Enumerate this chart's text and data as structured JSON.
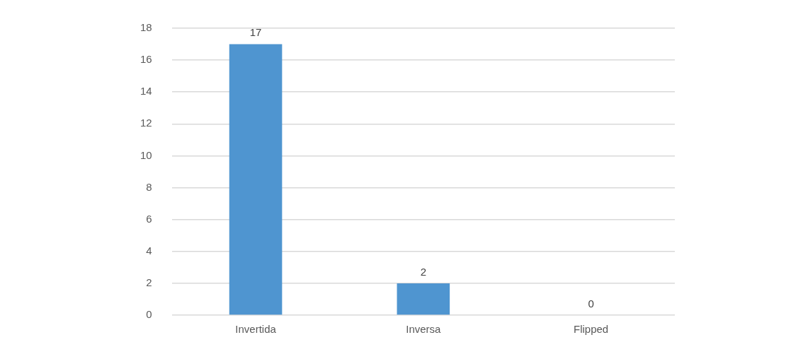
{
  "chart_data": {
    "type": "bar",
    "categories": [
      "Invertida",
      "Inversa",
      "Flipped"
    ],
    "values": [
      17,
      2,
      0
    ],
    "color": "#4f95d0",
    "ylim": [
      0,
      18
    ],
    "yticks": [
      0,
      2,
      4,
      6,
      8,
      10,
      12,
      14,
      16,
      18
    ],
    "grid": "y",
    "data_labels": true
  }
}
